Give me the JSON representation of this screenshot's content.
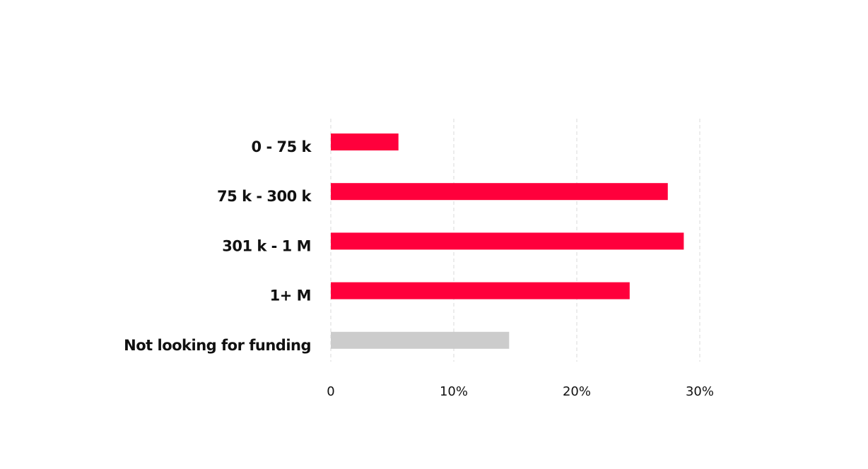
{
  "chart_data": {
    "type": "bar",
    "orientation": "horizontal",
    "categories": [
      "0 - 75 k",
      "75 k - 300 k",
      "301 k - 1 M",
      "1+ M",
      "Not looking for funding"
    ],
    "values": [
      5.5,
      27.4,
      28.7,
      24.3,
      14.5
    ],
    "colors": [
      "#ff003c",
      "#ff003c",
      "#ff003c",
      "#ff003c",
      "#cccccc"
    ],
    "xlim": [
      0,
      30
    ],
    "xticks": [
      0,
      {
        "value": 10,
        "label": "10%"
      },
      {
        "value": 20,
        "label": "20%"
      },
      {
        "value": 30,
        "label": "30%"
      }
    ],
    "grid": true
  }
}
